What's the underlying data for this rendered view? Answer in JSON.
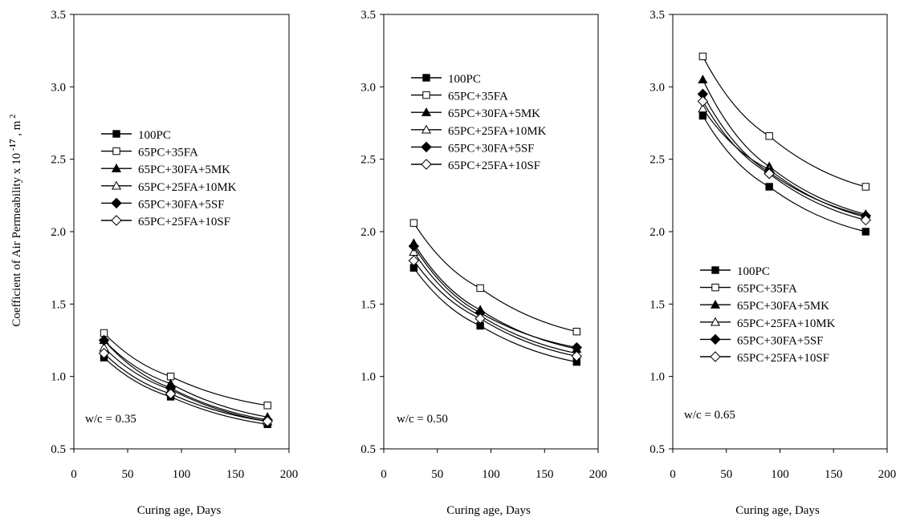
{
  "figure": {
    "ylabel_main": "Coefficient of Air  Permeability  x 10",
    "ylabel_exp": " -17",
    "ylabel_unit": " ,  m",
    "ylabel_unit_exp": " 2"
  },
  "chart_data": [
    {
      "type": "line",
      "title": "",
      "xlabel": "Curing age,   Days",
      "ylabel": "Coefficient of Air Permeability x 10 -17, m 2",
      "xlim": [
        0,
        200
      ],
      "ylim": [
        0.5,
        3.5
      ],
      "xticks": [
        "0",
        "50",
        "100",
        "150",
        "200"
      ],
      "yticks": [
        "0.5",
        "1.0",
        "1.5",
        "2.0",
        "2.5",
        "3.0",
        "3.5"
      ],
      "grid": false,
      "legend_position": "upper-left",
      "annotation": "w/c = 0.35",
      "x": [
        28,
        90,
        180
      ],
      "series": [
        {
          "name": "100PC",
          "marker": "filled-square",
          "values": [
            1.13,
            0.86,
            0.67
          ]
        },
        {
          "name": "65PC+35FA",
          "marker": "open-square",
          "values": [
            1.3,
            1.0,
            0.8
          ]
        },
        {
          "name": "65PC+30FA+5MK",
          "marker": "filled-triangle",
          "values": [
            1.25,
            0.95,
            0.72
          ]
        },
        {
          "name": "65PC+25FA+10MK",
          "marker": "open-triangle",
          "values": [
            1.2,
            0.91,
            0.69
          ]
        },
        {
          "name": "65PC+30FA+5SF",
          "marker": "filled-diamond",
          "values": [
            1.25,
            0.92,
            0.7
          ]
        },
        {
          "name": "65PC+25FA+10SF",
          "marker": "open-diamond",
          "values": [
            1.16,
            0.88,
            0.69
          ]
        }
      ]
    },
    {
      "type": "line",
      "title": "",
      "xlabel": "Curing age,   Days",
      "ylabel": "",
      "xlim": [
        0,
        200
      ],
      "ylim": [
        0.5,
        3.5
      ],
      "xticks": [
        "0",
        "50",
        "100",
        "150",
        "200"
      ],
      "yticks": [
        "0.5",
        "1.0",
        "1.5",
        "2.0",
        "2.5",
        "3.0",
        "3.5"
      ],
      "grid": false,
      "legend_position": "upper-left",
      "annotation": "w/c = 0.50",
      "x": [
        28,
        90,
        180
      ],
      "series": [
        {
          "name": "100PC",
          "marker": "filled-square",
          "values": [
            1.75,
            1.35,
            1.1
          ]
        },
        {
          "name": "65PC+35FA",
          "marker": "open-square",
          "values": [
            2.06,
            1.61,
            1.31
          ]
        },
        {
          "name": "65PC+30FA+5MK",
          "marker": "filled-triangle",
          "values": [
            1.92,
            1.46,
            1.19
          ]
        },
        {
          "name": "65PC+25FA+10MK",
          "marker": "open-triangle",
          "values": [
            1.86,
            1.42,
            1.16
          ]
        },
        {
          "name": "65PC+30FA+5SF",
          "marker": "filled-diamond",
          "values": [
            1.9,
            1.44,
            1.2
          ]
        },
        {
          "name": "65PC+25FA+10SF",
          "marker": "open-diamond",
          "values": [
            1.8,
            1.4,
            1.14
          ]
        }
      ]
    },
    {
      "type": "line",
      "title": "",
      "xlabel": "Curing age,   Days",
      "ylabel": "",
      "xlim": [
        0,
        200
      ],
      "ylim": [
        0.5,
        3.5
      ],
      "xticks": [
        "0",
        "50",
        "100",
        "150",
        "200"
      ],
      "yticks": [
        "0.5",
        "1.0",
        "1.5",
        "2.0",
        "2.5",
        "3.0",
        "3.5"
      ],
      "grid": false,
      "legend_position": "lower-left",
      "annotation": "w/c = 0.65",
      "x": [
        28,
        90,
        180
      ],
      "series": [
        {
          "name": "100PC",
          "marker": "filled-square",
          "values": [
            2.8,
            2.31,
            2.0
          ]
        },
        {
          "name": "65PC+35FA",
          "marker": "open-square",
          "values": [
            3.21,
            2.66,
            2.31
          ]
        },
        {
          "name": "65PC+30FA+5MK",
          "marker": "filled-triangle",
          "values": [
            3.05,
            2.45,
            2.12
          ]
        },
        {
          "name": "65PC+25FA+10MK",
          "marker": "open-triangle",
          "values": [
            2.85,
            2.43,
            2.1
          ]
        },
        {
          "name": "65PC+30FA+5SF",
          "marker": "filled-diamond",
          "values": [
            2.95,
            2.41,
            2.11
          ]
        },
        {
          "name": "65PC+25FA+10SF",
          "marker": "open-diamond",
          "values": [
            2.9,
            2.4,
            2.08
          ]
        }
      ]
    }
  ]
}
